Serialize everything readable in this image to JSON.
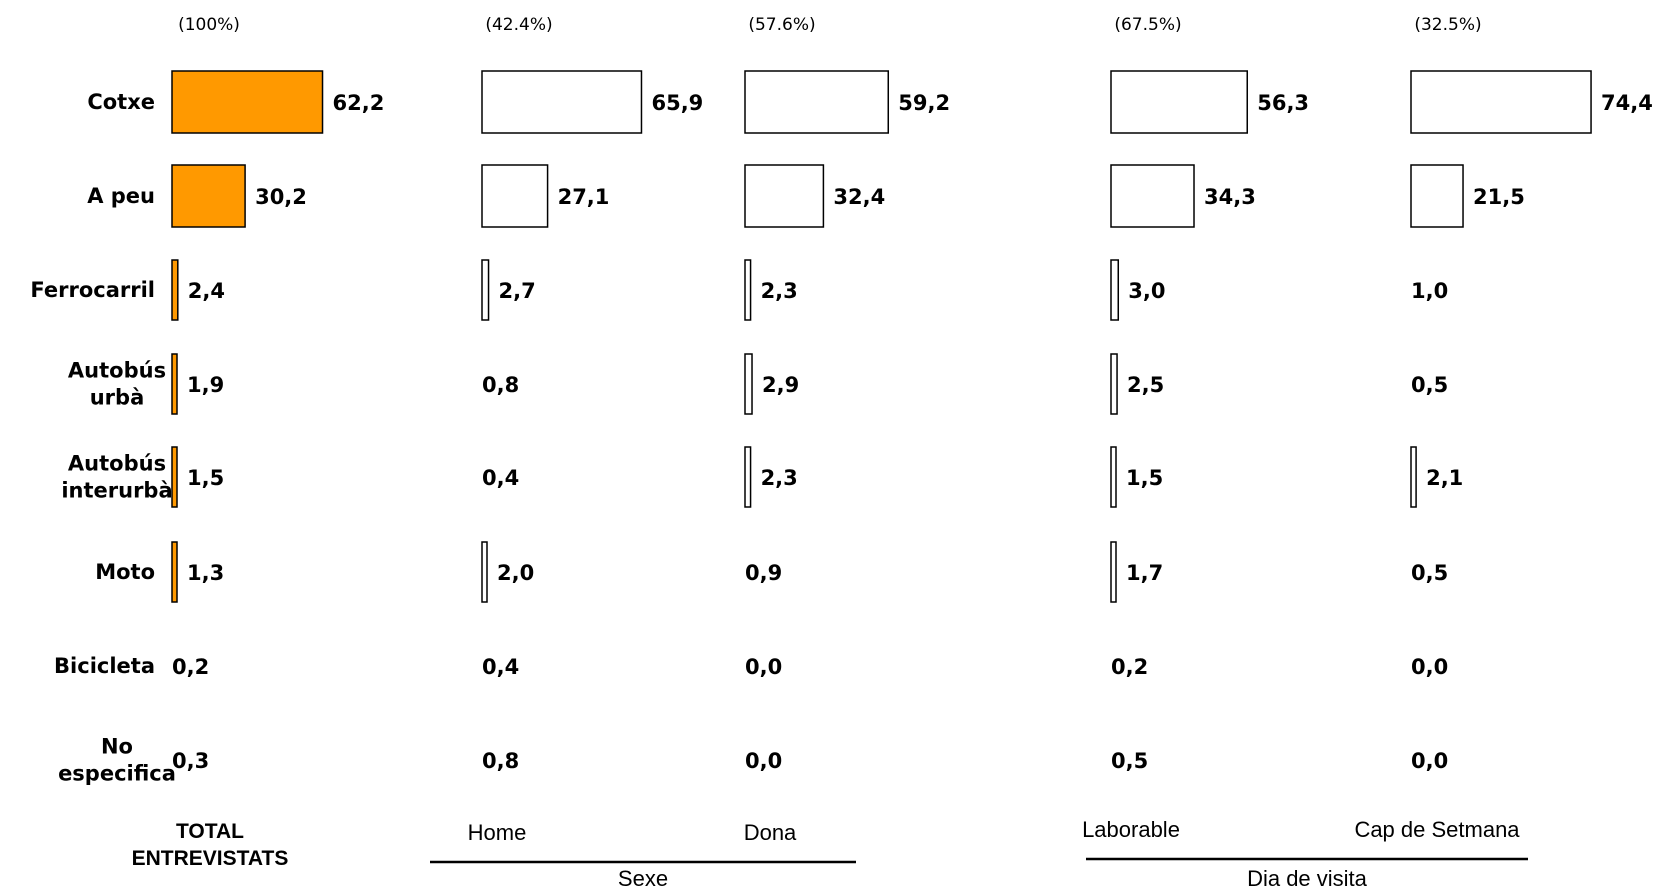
{
  "chart_data": {
    "type": "bar",
    "orientation": "horizontal",
    "unit": "%",
    "categories": [
      [
        "Cotxe"
      ],
      [
        "A peu"
      ],
      [
        "Ferrocarril"
      ],
      [
        "Autobús",
        "urbà"
      ],
      [
        "Autobús",
        "interurbà"
      ],
      [
        "Moto"
      ],
      [
        "Bicicleta"
      ],
      [
        "No",
        "especifica"
      ]
    ],
    "series": [
      {
        "name": "TOTAL ENTREVISTATS",
        "label_lines": [
          "TOTAL",
          "ENTREVISTATS"
        ],
        "share": "(100%)",
        "fill": "#FF9900",
        "values": [
          62.2,
          30.2,
          2.4,
          1.9,
          1.5,
          1.3,
          0.2,
          0.3
        ],
        "value_labels": [
          "62,2",
          "30,2",
          "2,4",
          "1,9",
          "1,5",
          "1,3",
          "0,2",
          "0,3"
        ],
        "hidden_bars": [
          6,
          7
        ]
      },
      {
        "name": "Home",
        "share": "(42.4%)",
        "fill": "#FFFFFF",
        "values": [
          65.9,
          27.1,
          2.7,
          0.8,
          0.4,
          2.0,
          0.4,
          0.8
        ],
        "value_labels": [
          "65,9",
          "27,1",
          "2,7",
          "0,8",
          "0,4",
          "2,0",
          "0,4",
          "0,8"
        ],
        "hidden_bars": [
          3,
          4,
          6,
          7
        ]
      },
      {
        "name": "Dona",
        "share": "(57.6%)",
        "fill": "#FFFFFF",
        "values": [
          59.2,
          32.4,
          2.3,
          2.9,
          2.3,
          0.9,
          0.0,
          0.0
        ],
        "value_labels": [
          "59,2",
          "32,4",
          "2,3",
          "2,9",
          "2,3",
          "0,9",
          "0,0",
          "0,0"
        ],
        "hidden_bars": [
          5,
          6,
          7
        ]
      },
      {
        "name": "Laborable",
        "share": "(67.5%)",
        "fill": "#FFFFFF",
        "values": [
          56.3,
          34.3,
          3.0,
          2.5,
          1.5,
          1.7,
          0.2,
          0.5
        ],
        "value_labels": [
          "56,3",
          "34,3",
          "3,0",
          "2,5",
          "1,5",
          "1,7",
          "0,2",
          "0,5"
        ],
        "hidden_bars": [
          6,
          7
        ]
      },
      {
        "name": "Cap de Setmana",
        "share": "(32.5%)",
        "fill": "#FFFFFF",
        "values": [
          74.4,
          21.5,
          1.0,
          0.5,
          2.1,
          0.5,
          0.0,
          0.0
        ],
        "value_labels": [
          "74,4",
          "21,5",
          "1,0",
          "0,5",
          "2,1",
          "0,5",
          "0,0",
          "0,0"
        ],
        "hidden_bars": [
          2,
          3,
          5,
          6,
          7
        ]
      }
    ],
    "groups": [
      {
        "label": "Sexe",
        "series": [
          "Home",
          "Dona"
        ]
      },
      {
        "label": "Dia de visita",
        "series": [
          "Laborable",
          "Cap de Setmana"
        ]
      }
    ],
    "grid": false,
    "legend": "none"
  }
}
